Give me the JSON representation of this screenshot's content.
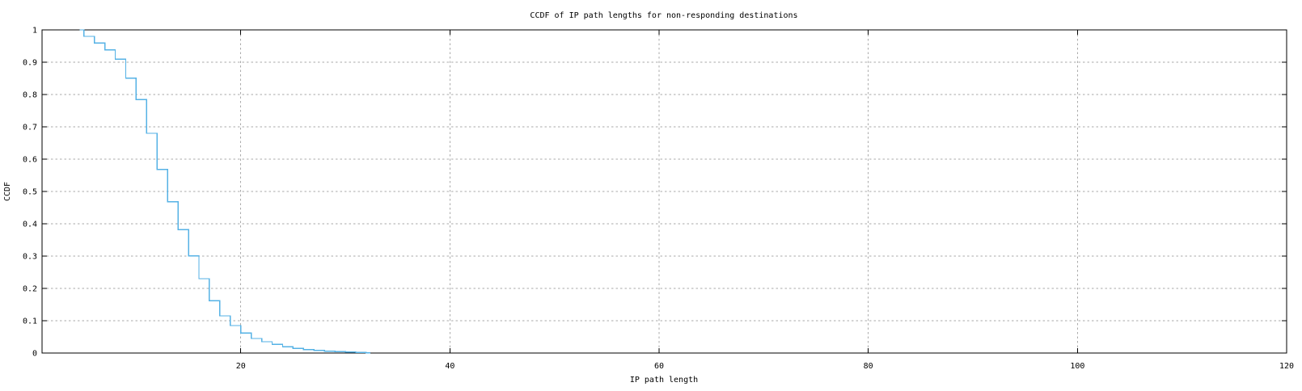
{
  "page": {
    "background": "#ffffff"
  },
  "colors": {
    "line": "#55b2e5",
    "grid": "#aaaaaa",
    "axis": "#000000",
    "text": "#000000"
  },
  "chart_data": {
    "type": "line",
    "style": "ccdf-step",
    "title": "CCDF of IP path lengths for non-responding destinations",
    "xlabel": "IP path length",
    "ylabel": "CCDF",
    "xlim": [
      1,
      120
    ],
    "ylim": [
      0,
      1
    ],
    "grid": true,
    "legend_position": "none",
    "x_ticks": [
      {
        "value": 20,
        "label": "20"
      },
      {
        "value": 40,
        "label": "40"
      },
      {
        "value": 60,
        "label": "60"
      },
      {
        "value": 80,
        "label": "80"
      },
      {
        "value": 100,
        "label": "100"
      },
      {
        "value": 120,
        "label": "120"
      }
    ],
    "y_ticks": [
      {
        "value": 0,
        "label": "0"
      },
      {
        "value": 0.1,
        "label": "0.1"
      },
      {
        "value": 0.2,
        "label": "0.2"
      },
      {
        "value": 0.3,
        "label": "0.3"
      },
      {
        "value": 0.4,
        "label": "0.4"
      },
      {
        "value": 0.5,
        "label": "0.5"
      },
      {
        "value": 0.6,
        "label": "0.6"
      },
      {
        "value": 0.7,
        "label": "0.7"
      },
      {
        "value": 0.8,
        "label": "0.8"
      },
      {
        "value": 0.9,
        "label": "0.9"
      },
      {
        "value": 1,
        "label": "1"
      }
    ],
    "series": [
      {
        "name": "CCDF of IP path lengths",
        "color": "#55b2e5",
        "start": {
          "x": 4.6,
          "y": 1.0
        },
        "end_x": 32.4,
        "steps": [
          [
            5,
            0.98
          ],
          [
            6,
            0.959
          ],
          [
            7,
            0.938
          ],
          [
            8,
            0.909
          ],
          [
            9,
            0.851
          ],
          [
            10,
            0.784
          ],
          [
            11,
            0.68
          ],
          [
            12,
            0.568
          ],
          [
            13,
            0.468
          ],
          [
            14,
            0.382
          ],
          [
            15,
            0.301
          ],
          [
            16,
            0.23
          ],
          [
            17,
            0.162
          ],
          [
            18,
            0.115
          ],
          [
            19,
            0.085
          ],
          [
            20,
            0.062
          ],
          [
            21,
            0.045
          ],
          [
            22,
            0.035
          ],
          [
            23,
            0.027
          ],
          [
            24,
            0.019
          ],
          [
            25,
            0.014
          ],
          [
            26,
            0.011
          ],
          [
            27,
            0.008
          ],
          [
            28,
            0.006
          ],
          [
            29,
            0.0045
          ],
          [
            30,
            0.003
          ],
          [
            31,
            0.0015
          ],
          [
            32,
            0.001
          ]
        ]
      }
    ]
  }
}
